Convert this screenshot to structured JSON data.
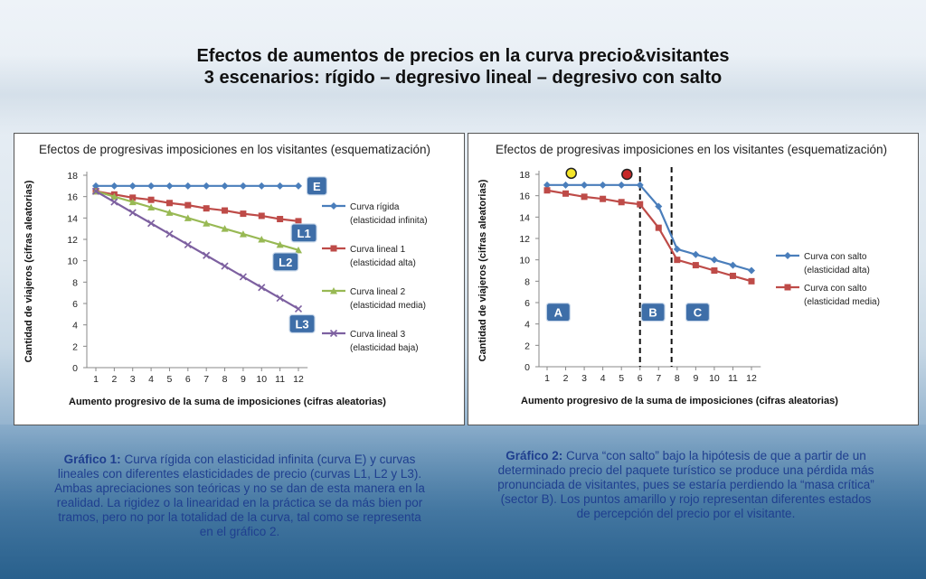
{
  "title": {
    "line1": "Efectos de aumentos de precios en la curva precio&visitantes",
    "line2": "3 escenarios: rígido – degresivo lineal – degresivo con salto"
  },
  "captions": {
    "left_label": "Gráfico 1:",
    "left_text": "Curva rígida con elasticidad infinita (curva E) y curvas lineales con diferentes elasticidades de precio (curvas L1, L2 y L3). Ambas apreciaciones son teóricas y no se dan de esta manera en la realidad. La rigidez o la linearidad en la práctica se da más bien por tramos, pero no por la totalidad de la curva, tal como se representa en el gráfico 2.",
    "right_label": "Gráfico 2:",
    "right_text": "Curva “con salto” bajo la hipótesis de que a partir de un determinado precio del paquete turístico se produce una pérdida más pronunciada de visitantes, pues se estaría perdiendo la “masa crítica” (sector B). Los puntos amarillo y rojo representan diferentes estados de percepción del precio por el visitante."
  },
  "chart_data": [
    {
      "type": "line",
      "title": "Efectos de progresivas imposiciones en los visitantes (esquematización)",
      "xlabel": "Aumento progresivo de la suma de imposiciones (cifras aleatorias)",
      "ylabel": "Cantidad de viajeros (cifras aleatorias)",
      "x": [
        1,
        2,
        3,
        4,
        5,
        6,
        7,
        8,
        9,
        10,
        11,
        12
      ],
      "ylim": [
        0,
        18
      ],
      "yticks": [
        0,
        2,
        4,
        6,
        8,
        10,
        12,
        14,
        16,
        18
      ],
      "grid": false,
      "legend": "right",
      "series": [
        {
          "name": "Curva rígida (elasticidad infinita)",
          "legend_lines": [
            "Curva rígida",
            "(elasticidad infinita)"
          ],
          "color": "#4a7ebb",
          "marker": "diamond",
          "values": [
            17,
            17,
            17,
            17,
            17,
            17,
            17,
            17,
            17,
            17,
            17,
            17
          ]
        },
        {
          "name": "Curva lineal 1 (elasticidad alta)",
          "legend_lines": [
            "Curva lineal 1",
            "(elasticidad alta)"
          ],
          "color": "#be4b48",
          "marker": "square",
          "values": [
            16.5,
            16.2,
            15.9,
            15.7,
            15.4,
            15.2,
            14.9,
            14.7,
            14.4,
            14.2,
            13.9,
            13.7
          ]
        },
        {
          "name": "Curva lineal 2 (elasticidad media)",
          "legend_lines": [
            "Curva lineal 2",
            "(elasticidad media)"
          ],
          "color": "#98b954",
          "marker": "triangle",
          "values": [
            16.5,
            16.0,
            15.5,
            15.0,
            14.5,
            14.0,
            13.5,
            13.0,
            12.5,
            12.0,
            11.5,
            11.0
          ]
        },
        {
          "name": "Curva lineal 3 (elasticidad baja)",
          "legend_lines": [
            "Curva lineal 3",
            "(elasticidad baja)"
          ],
          "color": "#7d60a0",
          "marker": "x",
          "values": [
            16.5,
            15.5,
            14.5,
            13.5,
            12.5,
            11.5,
            10.5,
            9.5,
            8.5,
            7.5,
            6.5,
            5.5
          ]
        }
      ],
      "annotations": [
        {
          "text": "E",
          "x": 13,
          "y": 17
        },
        {
          "text": "L1",
          "x": 12.3,
          "y": 12.6
        },
        {
          "text": "L2",
          "x": 11.3,
          "y": 9.9
        },
        {
          "text": "L3",
          "x": 12.2,
          "y": 4.1
        }
      ]
    },
    {
      "type": "line",
      "title": "Efectos de progresivas imposiciones en los visitantes (esquematización)",
      "xlabel": "Aumento progresivo de la suma de imposiciones (cifras aleatorias)",
      "ylabel": "Cantidad de viajeros (cifras aleatorias)",
      "x": [
        1,
        2,
        3,
        4,
        5,
        6,
        7,
        8,
        9,
        10,
        11,
        12
      ],
      "ylim": [
        0,
        18
      ],
      "yticks": [
        0,
        2,
        4,
        6,
        8,
        10,
        12,
        14,
        16,
        18
      ],
      "grid": false,
      "legend": "right",
      "series": [
        {
          "name": "Curva con salto (elasticidad alta)",
          "legend_lines": [
            "Curva con salto",
            "(elasticidad alta)"
          ],
          "color": "#4a7ebb",
          "marker": "diamond",
          "values": [
            17,
            17,
            17,
            17,
            17,
            17,
            15,
            11,
            10.5,
            10,
            9.5,
            9
          ]
        },
        {
          "name": "Curva con salto (elasticidad media)",
          "legend_lines": [
            "Curva con salto",
            "(elasticidad media)"
          ],
          "color": "#be4b48",
          "marker": "square",
          "values": [
            16.5,
            16.2,
            15.9,
            15.7,
            15.4,
            15.2,
            13,
            10,
            9.5,
            9,
            8.5,
            8
          ]
        }
      ],
      "vlines": [
        6,
        7.7
      ],
      "sectors": [
        {
          "text": "A",
          "x": 1.6,
          "y": 5.1
        },
        {
          "text": "B",
          "x": 6.7,
          "y": 5.1
        },
        {
          "text": "C",
          "x": 9.1,
          "y": 5.1
        }
      ],
      "points": [
        {
          "x": 2.3,
          "y": 18.1,
          "fill": "#f5e62a"
        },
        {
          "x": 5.3,
          "y": 18.0,
          "fill": "#c62828"
        }
      ]
    }
  ]
}
